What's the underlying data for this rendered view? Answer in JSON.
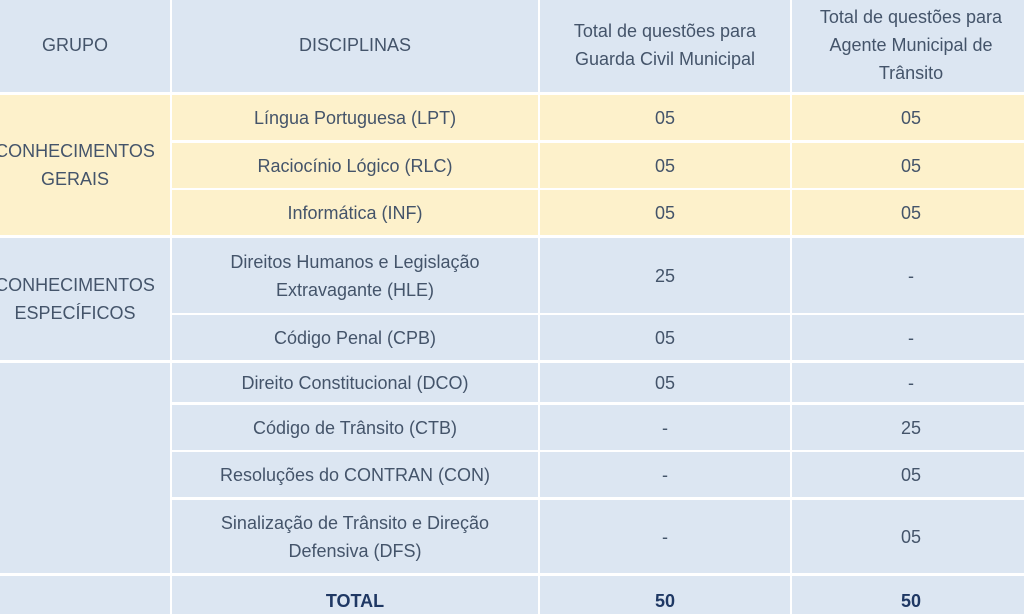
{
  "table": {
    "columns": [
      "GRUPO",
      "DISCIPLINAS",
      "Total de questões para Guarda Civil Municipal",
      "Total de questões para Agente Municipal de Trânsito"
    ],
    "groups": [
      "CONHECIMENTOS GERAIS",
      "CONHECIMENTOS ESPECÍFICOS"
    ],
    "rows": [
      [
        "Língua Portuguesa (LPT)",
        "05",
        "05"
      ],
      [
        "Raciocínio Lógico (RLC)",
        "05",
        "05"
      ],
      [
        "Informática (INF)",
        "05",
        "05"
      ],
      [
        "Direitos Humanos e Legislação Extravagante (HLE)",
        "25",
        "-"
      ],
      [
        "Código Penal (CPB)",
        "05",
        "-"
      ],
      [
        "Direito Constitucional (DCO)",
        "05",
        "-"
      ],
      [
        "Código de Trânsito (CTB)",
        "-",
        "25"
      ],
      [
        "Resoluções do CONTRAN (CON)",
        "-",
        "05"
      ],
      [
        "Sinalização de Trânsito e Direção Defensiva (DFS)",
        "-",
        "05"
      ]
    ],
    "total": [
      "TOTAL",
      "50",
      "50"
    ]
  }
}
